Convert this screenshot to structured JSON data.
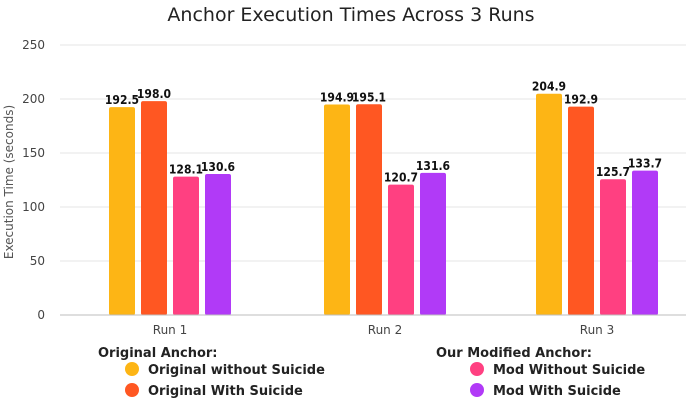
{
  "chart_data": {
    "type": "bar",
    "title": "Anchor Execution Times Across 3 Runs",
    "xlabel": "",
    "ylabel": "Execution Time (seconds)",
    "ylim": [
      0,
      250
    ],
    "yticks": [
      0,
      50,
      100,
      150,
      200,
      250
    ],
    "grid": true,
    "categories": [
      "Run 1",
      "Run 2",
      "Run 3"
    ],
    "series": [
      {
        "name": "Original without Suicide",
        "color": "#FDB515",
        "values": [
          192.5,
          194.9,
          204.9
        ],
        "labels": [
          "192.5",
          "194.9",
          "204.9"
        ]
      },
      {
        "name": "Original With Suicide",
        "color": "#FF5722",
        "values": [
          198.0,
          195.1,
          192.9
        ],
        "labels": [
          "198.0",
          "195.1",
          "192.9"
        ]
      },
      {
        "name": "Mod Without Suicide",
        "color": "#FF4081",
        "values": [
          128.1,
          120.7,
          125.7
        ],
        "labels": [
          "128.1",
          "120.7",
          "125.7"
        ]
      },
      {
        "name": "Mod With Suicide",
        "color": "#B13AF7",
        "values": [
          130.6,
          131.6,
          133.7
        ],
        "labels": [
          "130.6",
          "131.6",
          "133.7"
        ]
      }
    ],
    "legend": {
      "placement": "bottom",
      "groups": [
        {
          "title": "Original Anchor:",
          "series_indices": [
            0,
            1
          ]
        },
        {
          "title": "Our Modified Anchor:",
          "series_indices": [
            2,
            3
          ]
        }
      ]
    }
  }
}
